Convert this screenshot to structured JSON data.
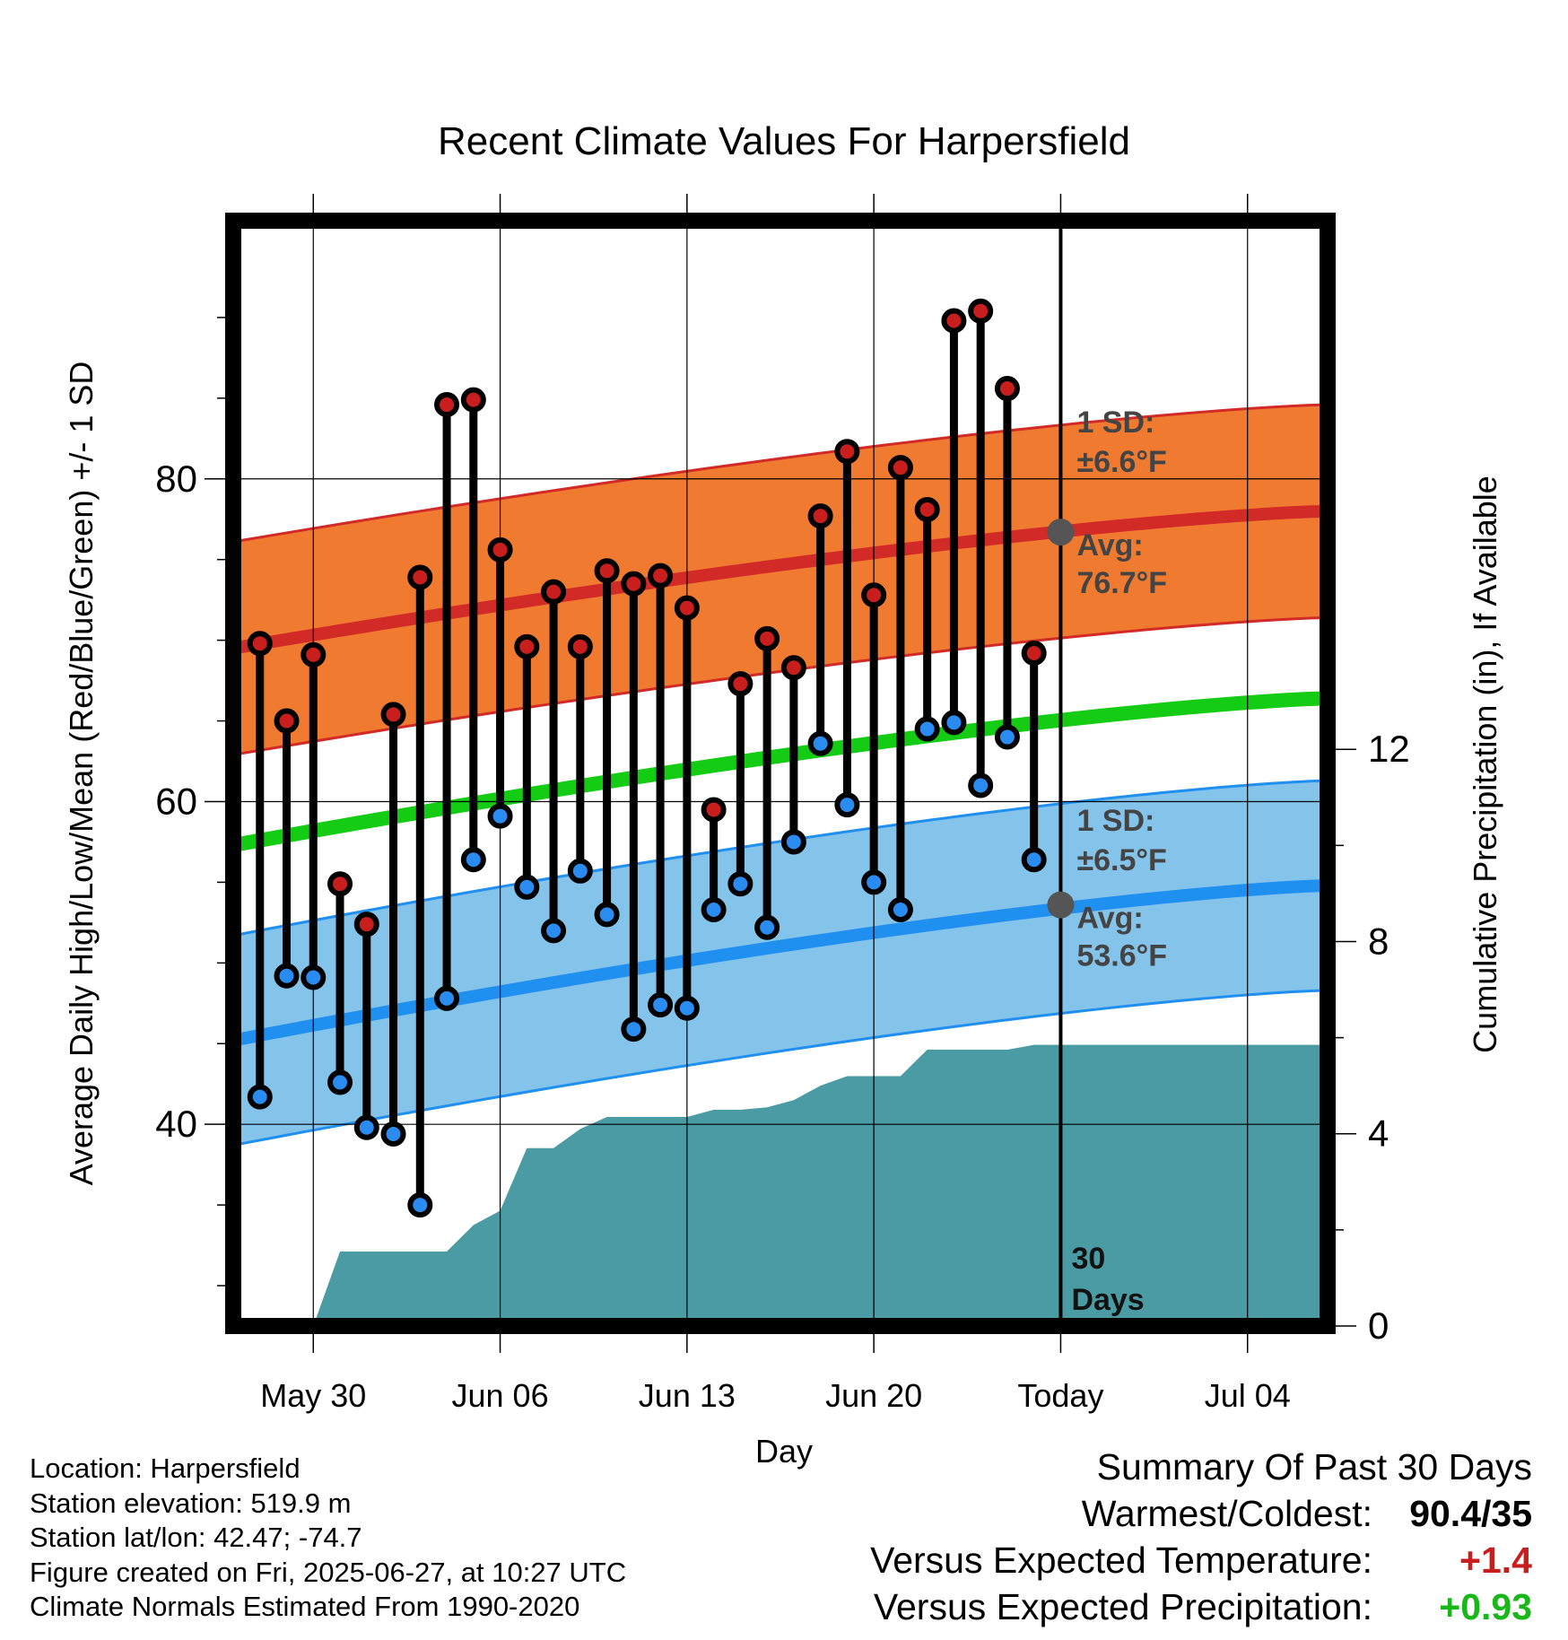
{
  "chart_data": {
    "type": "line",
    "title": "Recent Climate Values For Harpersfield",
    "xlabel": "Day",
    "ylabel_left": "Average Daily High/Low/Mean (Red/Blue/Green) +/- 1 SD",
    "ylabel_right": "Cumulative Precipitation (in), If Available",
    "x_tick_labels": [
      "May 30",
      "Jun 06",
      "Jun 13",
      "Jun 20",
      "Today",
      "Jul 04"
    ],
    "x_range_days": [
      "2025-05-27",
      "2025-07-07"
    ],
    "x_tick_days": [
      "2025-05-30",
      "2025-06-06",
      "2025-06-13",
      "2025-06-20",
      "2025-06-27",
      "2025-07-04"
    ],
    "ylim_left": [
      27.5,
      96
    ],
    "yticks_left": [
      40,
      60,
      80
    ],
    "ylim_right": [
      0,
      23
    ],
    "yticks_right": [
      0,
      4,
      8,
      12
    ],
    "grid": true,
    "today_label": "30\nDays",
    "days": [
      "2025-05-28",
      "2025-05-29",
      "2025-05-30",
      "2025-05-31",
      "2025-06-01",
      "2025-06-02",
      "2025-06-03",
      "2025-06-04",
      "2025-06-05",
      "2025-06-06",
      "2025-06-07",
      "2025-06-08",
      "2025-06-09",
      "2025-06-10",
      "2025-06-11",
      "2025-06-12",
      "2025-06-13",
      "2025-06-14",
      "2025-06-15",
      "2025-06-16",
      "2025-06-17",
      "2025-06-18",
      "2025-06-19",
      "2025-06-20",
      "2025-06-21",
      "2025-06-22",
      "2025-06-23",
      "2025-06-24",
      "2025-06-25",
      "2025-06-26"
    ],
    "series": [
      {
        "name": "High",
        "color": "#c81e1e",
        "values": [
          69.8,
          65.0,
          69.1,
          54.9,
          52.4,
          65.4,
          73.9,
          84.6,
          84.9,
          75.6,
          69.6,
          73.0,
          69.6,
          74.3,
          73.5,
          74.0,
          72.0,
          59.5,
          67.3,
          70.1,
          68.3,
          77.7,
          81.7,
          72.8,
          80.7,
          78.1,
          89.8,
          90.4,
          85.6,
          69.2
        ]
      },
      {
        "name": "Low",
        "color": "#2a8cf0",
        "values": [
          41.7,
          49.2,
          49.1,
          42.6,
          39.8,
          39.4,
          35.0,
          47.8,
          56.4,
          59.1,
          54.7,
          52.0,
          55.7,
          53.0,
          45.9,
          47.4,
          47.2,
          53.3,
          54.9,
          52.2,
          57.5,
          63.6,
          59.8,
          55.0,
          53.3,
          64.5,
          64.9,
          61.0,
          64.0,
          56.4
        ]
      }
    ],
    "normal_high": {
      "avg_start": 69.5,
      "avg_end": 78.0,
      "sd": 6.6,
      "label_sd": "1 SD:",
      "label_sd_val": "±6.6°F",
      "label_avg": "Avg:",
      "label_avg_val": "76.7°F",
      "today_avg": 76.7,
      "fill": "#f07b30",
      "line": "#d12a27"
    },
    "normal_low": {
      "avg_start": 45.2,
      "avg_end": 54.8,
      "sd": 6.5,
      "label_sd": "1 SD:",
      "label_sd_val": "±6.5°F",
      "label_avg": "Avg:",
      "label_avg_val": "53.6°F",
      "today_avg": 53.6,
      "fill": "#84c3ea",
      "line": "#1f8ff0"
    },
    "normal_mean": {
      "start": 57.3,
      "end": 66.4,
      "color": "#14cc14"
    },
    "precipitation": {
      "color": "#4a9ba3",
      "days": [
        "2025-05-30",
        "2025-05-31",
        "2025-06-01",
        "2025-06-02",
        "2025-06-03",
        "2025-06-04",
        "2025-06-05",
        "2025-06-06",
        "2025-06-07",
        "2025-06-08",
        "2025-06-09",
        "2025-06-10",
        "2025-06-11",
        "2025-06-12",
        "2025-06-13",
        "2025-06-14",
        "2025-06-15",
        "2025-06-16",
        "2025-06-17",
        "2025-06-18",
        "2025-06-19",
        "2025-06-20",
        "2025-06-21",
        "2025-06-22",
        "2025-06-23",
        "2025-06-24",
        "2025-06-25",
        "2025-06-26",
        "2025-06-27",
        "2025-07-07"
      ],
      "values": [
        0,
        1.55,
        1.55,
        1.55,
        1.55,
        1.55,
        2.1,
        2.4,
        3.7,
        3.7,
        4.1,
        4.35,
        4.35,
        4.35,
        4.35,
        4.5,
        4.5,
        4.55,
        4.7,
        5.0,
        5.2,
        5.2,
        5.2,
        5.75,
        5.75,
        5.75,
        5.75,
        5.85,
        5.85,
        5.85
      ]
    }
  },
  "meta": {
    "location": "Location: Harpersfield",
    "elevation": "Station elevation: 519.9 m",
    "latlon": "Station lat/lon: 42.47; -74.7",
    "created": "Figure created on Fri, 2025-06-27, at 10:27 UTC",
    "normals": "Climate Normals Estimated From 1990-2020"
  },
  "summary": {
    "title": "Summary Of Past 30 Days",
    "warmest_label": "Warmest/Coldest:",
    "warmest_value": "90.4/35",
    "temp_label": "Versus Expected Temperature:",
    "temp_value": "+1.4",
    "precip_label": "Versus Expected Precipitation:",
    "precip_value": "+0.93"
  }
}
